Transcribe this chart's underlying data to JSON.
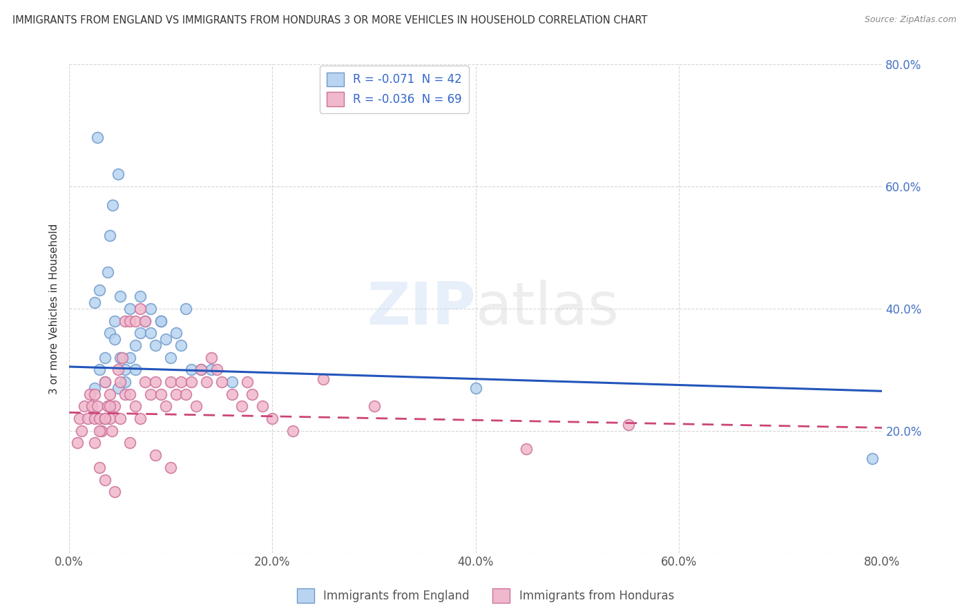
{
  "title": "IMMIGRANTS FROM ENGLAND VS IMMIGRANTS FROM HONDURAS 3 OR MORE VEHICLES IN HOUSEHOLD CORRELATION CHART",
  "source": "Source: ZipAtlas.com",
  "ylabel": "3 or more Vehicles in Household",
  "xlim": [
    0.0,
    0.8
  ],
  "ylim": [
    0.0,
    0.8
  ],
  "xticks": [
    0.0,
    0.2,
    0.4,
    0.6,
    0.8
  ],
  "yticks": [
    0.0,
    0.2,
    0.4,
    0.6,
    0.8
  ],
  "xticklabels": [
    "0.0%",
    "20.0%",
    "40.0%",
    "60.0%",
    "80.0%"
  ],
  "yticklabels": [
    "",
    "20.0%",
    "40.0%",
    "60.0%",
    "80.0%"
  ],
  "england_color": "#b8d4f0",
  "honduras_color": "#f0b8cc",
  "england_edge": "#7099cc",
  "honduras_edge": "#cc7099",
  "england_line_color": "#2255bb",
  "honduras_line_color": "#cc4477",
  "R_england": -0.071,
  "N_england": 42,
  "R_honduras": -0.036,
  "N_honduras": 69,
  "watermark_zip": "ZIP",
  "watermark_atlas": "atlas",
  "eng_line_x": [
    0.0,
    0.8
  ],
  "eng_line_y": [
    0.305,
    0.265
  ],
  "hon_line_x": [
    0.0,
    0.8
  ],
  "hon_line_y": [
    0.23,
    0.205
  ],
  "england_x": [
    0.03,
    0.035,
    0.04,
    0.045,
    0.025,
    0.03,
    0.05,
    0.045,
    0.055,
    0.06,
    0.065,
    0.07,
    0.075,
    0.08,
    0.085,
    0.09,
    0.095,
    0.1,
    0.105,
    0.11,
    0.115,
    0.05,
    0.06,
    0.07,
    0.08,
    0.09,
    0.055,
    0.065,
    0.12,
    0.13,
    0.14,
    0.16,
    0.038,
    0.04,
    0.043,
    0.048,
    0.4,
    0.048,
    0.035,
    0.025,
    0.79,
    0.028
  ],
  "england_y": [
    0.3,
    0.32,
    0.36,
    0.38,
    0.41,
    0.43,
    0.32,
    0.35,
    0.3,
    0.32,
    0.34,
    0.36,
    0.38,
    0.36,
    0.34,
    0.38,
    0.35,
    0.32,
    0.36,
    0.34,
    0.4,
    0.42,
    0.4,
    0.42,
    0.4,
    0.38,
    0.28,
    0.3,
    0.3,
    0.3,
    0.3,
    0.28,
    0.46,
    0.52,
    0.57,
    0.62,
    0.27,
    0.27,
    0.28,
    0.27,
    0.155,
    0.68
  ],
  "honduras_x": [
    0.01,
    0.015,
    0.02,
    0.008,
    0.012,
    0.018,
    0.022,
    0.025,
    0.025,
    0.028,
    0.03,
    0.032,
    0.035,
    0.038,
    0.04,
    0.035,
    0.04,
    0.045,
    0.05,
    0.05,
    0.055,
    0.06,
    0.065,
    0.07,
    0.075,
    0.08,
    0.085,
    0.09,
    0.095,
    0.1,
    0.105,
    0.11,
    0.115,
    0.12,
    0.125,
    0.13,
    0.135,
    0.14,
    0.145,
    0.15,
    0.055,
    0.06,
    0.065,
    0.07,
    0.075,
    0.03,
    0.035,
    0.045,
    0.16,
    0.17,
    0.175,
    0.18,
    0.19,
    0.2,
    0.22,
    0.25,
    0.3,
    0.45,
    0.55,
    0.048,
    0.052,
    0.025,
    0.03,
    0.035,
    0.04,
    0.042,
    0.06,
    0.085,
    0.1
  ],
  "honduras_y": [
    0.22,
    0.24,
    0.26,
    0.18,
    0.2,
    0.22,
    0.24,
    0.22,
    0.26,
    0.24,
    0.22,
    0.2,
    0.22,
    0.24,
    0.22,
    0.28,
    0.26,
    0.24,
    0.22,
    0.28,
    0.26,
    0.26,
    0.24,
    0.22,
    0.28,
    0.26,
    0.28,
    0.26,
    0.24,
    0.28,
    0.26,
    0.28,
    0.26,
    0.28,
    0.24,
    0.3,
    0.28,
    0.32,
    0.3,
    0.28,
    0.38,
    0.38,
    0.38,
    0.4,
    0.38,
    0.14,
    0.12,
    0.1,
    0.26,
    0.24,
    0.28,
    0.26,
    0.24,
    0.22,
    0.2,
    0.285,
    0.24,
    0.17,
    0.21,
    0.3,
    0.32,
    0.18,
    0.2,
    0.22,
    0.24,
    0.2,
    0.18,
    0.16,
    0.14
  ]
}
